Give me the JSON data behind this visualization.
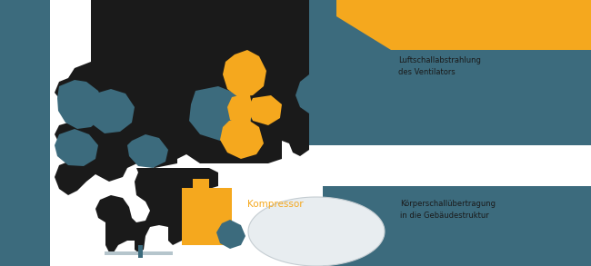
{
  "bg": "#ffffff",
  "teal": "#3c6b7d",
  "orange": "#f5a81e",
  "dark": "#1a1a1a",
  "lgray": "#dce4e8",
  "kompressor_text": "Kompressor",
  "ann_top_line1": "Luftschallabstrahlung",
  "ann_top_line2": "des Ventilators",
  "ann_bot_line1": "Körperschallübertragung",
  "ann_bot_line2": "in die Gebäudestruktur",
  "figw": 6.5,
  "figh": 2.93,
  "dpi": 100
}
